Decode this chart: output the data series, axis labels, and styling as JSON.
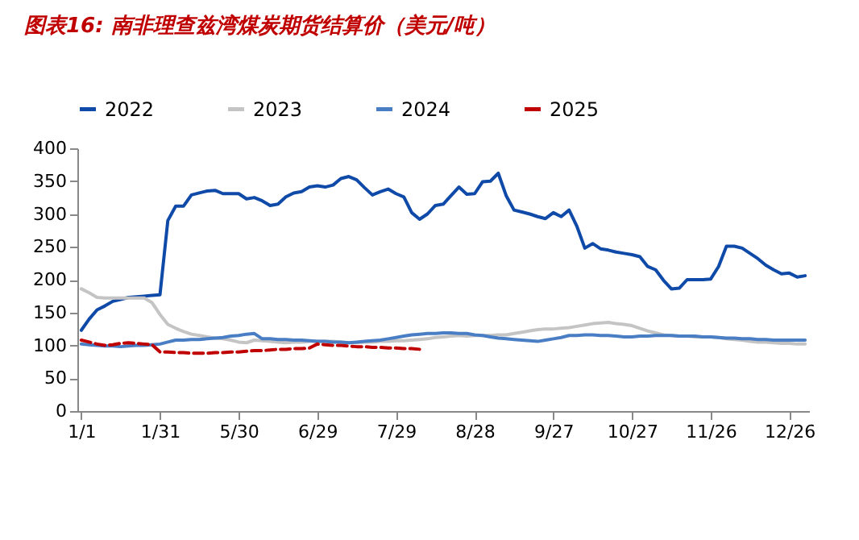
{
  "chart_data": {
    "type": "line",
    "title": "图表16: 南非理查兹湾煤炭期货结算价（美元/吨）",
    "categories": [
      "1/1",
      null,
      null,
      null,
      null,
      null,
      null,
      null,
      null,
      null,
      "1/31",
      null,
      null,
      null,
      null,
      null,
      null,
      null,
      null,
      null,
      "5/30",
      null,
      null,
      null,
      null,
      null,
      null,
      null,
      null,
      null,
      "6/29",
      null,
      null,
      null,
      null,
      null,
      null,
      null,
      null,
      null,
      "7/29",
      null,
      null,
      null,
      null,
      null,
      null,
      null,
      null,
      null,
      "8/28",
      null,
      null,
      null,
      null,
      null,
      null,
      null,
      null,
      null,
      "9/27",
      null,
      null,
      null,
      null,
      null,
      null,
      null,
      null,
      null,
      "10/27",
      null,
      null,
      null,
      null,
      null,
      null,
      null,
      null,
      null,
      "11/26",
      null,
      null,
      null,
      null,
      null,
      null,
      null,
      null,
      null,
      "12/26",
      null,
      null
    ],
    "ylim": [
      0,
      400
    ],
    "yticks": [
      0,
      50,
      100,
      150,
      200,
      250,
      300,
      350,
      400
    ],
    "grid": false,
    "legend": "top",
    "line_style": "solid",
    "series": [
      {
        "name": "2022",
        "color": "#0f4aa8",
        "values": [
          123,
          140,
          154,
          160,
          167,
          170,
          173,
          174,
          175,
          176,
          177,
          290,
          312,
          312,
          329,
          332,
          335,
          336,
          331,
          331,
          331,
          323,
          325,
          320,
          313,
          315,
          326,
          332,
          334,
          341,
          343,
          341,
          344,
          354,
          357,
          352,
          340,
          329,
          334,
          338,
          331,
          326,
          302,
          292,
          300,
          313,
          315,
          328,
          341,
          330,
          331,
          349,
          350,
          362,
          328,
          306,
          303,
          300,
          296,
          293,
          302,
          296,
          306,
          281,
          248,
          255,
          247,
          245,
          242,
          240,
          238,
          235,
          220,
          215,
          199,
          186,
          187,
          200,
          200,
          200,
          201,
          220,
          251,
          251,
          248,
          240,
          232,
          222,
          215,
          209,
          210,
          204,
          206
        ]
      },
      {
        "name": "2023",
        "color": "#c4c4c4",
        "values": [
          186,
          180,
          173,
          172,
          172,
          172,
          172,
          172,
          172,
          165,
          147,
          132,
          126,
          121,
          117,
          115,
          113,
          111,
          110,
          108,
          105,
          104,
          108,
          107,
          106,
          105,
          104,
          105,
          105,
          106,
          106,
          106,
          106,
          105,
          104,
          104,
          105,
          105,
          106,
          106,
          107,
          107,
          108,
          109,
          110,
          112,
          113,
          114,
          115,
          114,
          115,
          115,
          115,
          116,
          116,
          118,
          120,
          122,
          124,
          125,
          125,
          126,
          127,
          129,
          131,
          133,
          134,
          135,
          133,
          132,
          130,
          126,
          122,
          119,
          116,
          115,
          114,
          114,
          113,
          113,
          113,
          112,
          110,
          109,
          108,
          106,
          105,
          105,
          104,
          103,
          103,
          102,
          102
        ]
      },
      {
        "name": "2024",
        "color": "#4a7ec4",
        "values": [
          102,
          101,
          100,
          99,
          99,
          98,
          99,
          100,
          100,
          101,
          102,
          105,
          108,
          108,
          109,
          109,
          110,
          111,
          112,
          114,
          115,
          117,
          118,
          110,
          110,
          109,
          109,
          108,
          108,
          107,
          106,
          106,
          105,
          105,
          104,
          105,
          106,
          107,
          108,
          110,
          112,
          114,
          116,
          117,
          118,
          118,
          119,
          119,
          118,
          118,
          116,
          115,
          113,
          111,
          110,
          109,
          108,
          107,
          106,
          108,
          110,
          112,
          115,
          115,
          116,
          116,
          115,
          115,
          114,
          113,
          113,
          114,
          114,
          115,
          115,
          115,
          114,
          114,
          114,
          113,
          113,
          112,
          111,
          111,
          110,
          110,
          109,
          109,
          108,
          108,
          108,
          108,
          108
        ]
      },
      {
        "name": "2025",
        "color": "#c00000",
        "line_style": "dashed",
        "values": [
          108,
          105,
          102,
          100,
          101,
          103,
          104,
          103,
          102,
          101,
          90,
          90,
          89,
          89,
          88,
          88,
          88,
          89,
          89,
          90,
          90,
          91,
          92,
          92,
          93,
          94,
          94,
          95,
          95,
          96,
          102,
          101,
          100,
          100,
          99,
          98,
          98,
          97,
          97,
          96,
          96,
          95,
          95,
          94,
          null,
          null,
          null,
          null,
          null,
          null,
          null,
          null,
          null,
          null,
          null,
          null,
          null,
          null,
          null,
          null,
          null,
          null,
          null,
          null,
          null,
          null,
          null,
          null,
          null,
          null,
          null,
          null,
          null,
          null,
          null,
          null,
          null,
          null,
          null,
          null,
          null,
          null,
          null,
          null,
          null,
          null,
          null,
          null,
          null,
          null,
          null,
          null,
          null
        ]
      }
    ]
  }
}
